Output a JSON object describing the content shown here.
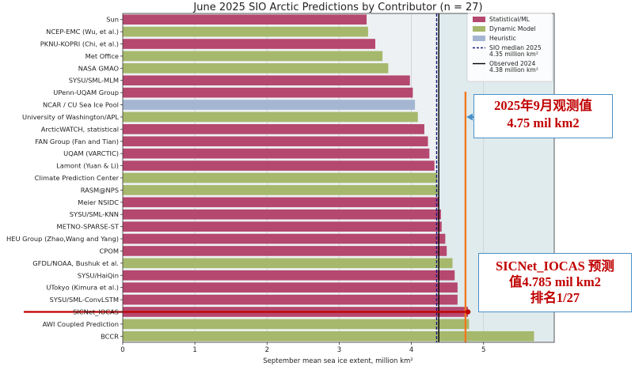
{
  "chart_data": {
    "type": "bar",
    "orientation": "horizontal",
    "title": "June 2025 SIO Arctic Predictions by Contributor (n = 27)",
    "xlabel": "September mean sea ice extent, million km²",
    "ylabel": "",
    "xlim": [
      0,
      5.98
    ],
    "xticks": [
      0,
      1,
      2,
      3,
      4,
      5
    ],
    "grid": "vertical",
    "categories": [
      "Sun",
      "NCEP-EMC (Wu, et al.)",
      "PKNU-KOPRI (Chi, et al.)",
      "Met Office",
      "NASA GMAO",
      "SYSU/SML-MLM",
      "UPenn-UQAM Group",
      "NCAR / CU Sea Ice Pool",
      "University of Washington/APL",
      "ArcticWATCH, statistical",
      "FAN Group (Fan and Tian)",
      "UQAM (VARCTIC)",
      "Lamont (Yuan & Li)",
      "Climate Prediction Center",
      "RASM@NPS",
      "Meier NSIDC",
      "SYSU/SML-KNN",
      "METNO-SPARSE-ST",
      "HEU Group (Zhao,Wang and Yang)",
      "CPOM",
      "GFDL/NOAA, Bushuk et al.",
      "SYSU/HaiQin",
      "UTokyo (Kimura et al.)",
      "SYSU/SML-ConvLSTM",
      "SICNet_IOCAS",
      "AWI Coupled Prediction",
      "BCCR"
    ],
    "values": [
      3.38,
      3.4,
      3.5,
      3.6,
      3.68,
      3.98,
      4.02,
      4.05,
      4.09,
      4.18,
      4.23,
      4.25,
      4.32,
      4.36,
      4.37,
      4.38,
      4.41,
      4.42,
      4.47,
      4.49,
      4.57,
      4.6,
      4.64,
      4.64,
      4.785,
      4.8,
      5.7
    ],
    "methods": [
      "Statistical/ML",
      "Dynamic Model",
      "Statistical/ML",
      "Dynamic Model",
      "Dynamic Model",
      "Statistical/ML",
      "Statistical/ML",
      "Heuristic",
      "Dynamic Model",
      "Statistical/ML",
      "Statistical/ML",
      "Statistical/ML",
      "Statistical/ML",
      "Dynamic Model",
      "Dynamic Model",
      "Statistical/ML",
      "Statistical/ML",
      "Statistical/ML",
      "Statistical/ML",
      "Statistical/ML",
      "Dynamic Model",
      "Statistical/ML",
      "Statistical/ML",
      "Statistical/ML",
      "Statistical/ML",
      "Dynamic Model",
      "Dynamic Model"
    ],
    "method_colors": {
      "Statistical/ML": "#b5486e",
      "Dynamic Model": "#a6b86c",
      "Heuristic": "#a4b6d2"
    },
    "reference_lines": [
      {
        "name": "SIO median 2025",
        "value": 4.35,
        "label": "SIO median 2025\n4.35 million km²",
        "style": "dashed",
        "color": "#1a1a7a"
      },
      {
        "name": "Observed 2024",
        "value": 4.38,
        "label": "Observed 2024\n4.38 million km²",
        "style": "solid",
        "color": "#000000"
      }
    ],
    "observation_2025": {
      "value": 4.75,
      "color": "#f07820"
    },
    "highlight": {
      "category": "SICNet_IOCAS",
      "value": 4.785,
      "color": "#c00000"
    },
    "legend": {
      "placement": "top-right",
      "entries": [
        {
          "label": "Statistical/ML",
          "type": "patch",
          "color": "#b5486e"
        },
        {
          "label": "Dynamic Model",
          "type": "patch",
          "color": "#a6b86c"
        },
        {
          "label": "Heuristic",
          "type": "patch",
          "color": "#a4b6d2"
        },
        {
          "label": "SIO median 2025",
          "sub": "4.35 million km²",
          "type": "dashed-line",
          "color": "#1a1a7a"
        },
        {
          "label": "Observed 2024",
          "sub": "4.38 million km²",
          "type": "line",
          "color": "#000000"
        }
      ]
    },
    "background_regions": [
      {
        "from": 0,
        "to": 4.35,
        "color": "#eef1f3"
      },
      {
        "from": 4.35,
        "to": 5.98,
        "color": "#e0ebee"
      }
    ],
    "annotations": {
      "observed_2025": {
        "line1": "2025年9月观测值",
        "line2": "4.75 mil km2"
      },
      "sicnet": {
        "line1": "SICNet_IOCAS 预测",
        "line2": "值4.785 mil km2",
        "line3": "排名1/27"
      }
    }
  }
}
